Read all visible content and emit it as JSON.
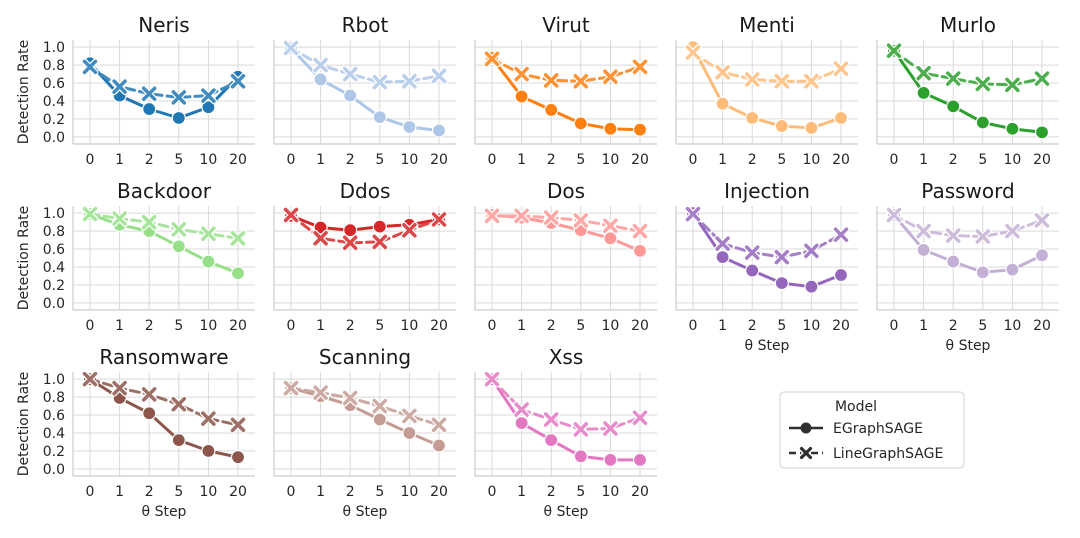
{
  "chart_data": {
    "type": "line",
    "layout": "small-multiples",
    "ylabel": "Detection Rate",
    "xlabel": "θ Step",
    "x_categories": [
      "0",
      "1",
      "2",
      "5",
      "10",
      "20"
    ],
    "ylim": [
      -0.08,
      1.08
    ],
    "yticks": [
      0.0,
      0.2,
      0.4,
      0.6,
      0.8,
      1.0
    ],
    "ytick_labels": [
      "0.0",
      "0.2",
      "0.4",
      "0.6",
      "0.8",
      "1.0"
    ],
    "grid": true,
    "legend": {
      "title": "Model",
      "position": "bottom-right",
      "entries": [
        {
          "name": "EGraphSAGE",
          "marker": "circle",
          "line": "solid"
        },
        {
          "name": "LineGraphSAGE",
          "marker": "x",
          "line": "dashed"
        }
      ]
    },
    "panels": [
      {
        "title": "Neris",
        "color": "#1f77b4",
        "series": [
          {
            "name": "EGraphSAGE",
            "values": [
              0.82,
              0.46,
              0.31,
              0.21,
              0.33,
              0.67
            ]
          },
          {
            "name": "LineGraphSAGE",
            "values": [
              0.78,
              0.56,
              0.48,
              0.44,
              0.46,
              0.62
            ]
          }
        ]
      },
      {
        "title": "Rbot",
        "color": "#aec7e8",
        "series": [
          {
            "name": "EGraphSAGE",
            "values": [
              0.99,
              0.64,
              0.46,
              0.22,
              0.11,
              0.07
            ]
          },
          {
            "name": "LineGraphSAGE",
            "values": [
              0.99,
              0.8,
              0.7,
              0.61,
              0.62,
              0.68
            ]
          }
        ]
      },
      {
        "title": "Virut",
        "color": "#ff7f0e",
        "series": [
          {
            "name": "EGraphSAGE",
            "values": [
              0.88,
              0.45,
              0.3,
              0.15,
              0.09,
              0.08
            ]
          },
          {
            "name": "LineGraphSAGE",
            "values": [
              0.87,
              0.7,
              0.63,
              0.62,
              0.67,
              0.78
            ]
          }
        ]
      },
      {
        "title": "Menti",
        "color": "#ffbb78",
        "series": [
          {
            "name": "EGraphSAGE",
            "values": [
              1.0,
              0.37,
              0.21,
              0.12,
              0.1,
              0.21
            ]
          },
          {
            "name": "LineGraphSAGE",
            "values": [
              0.94,
              0.72,
              0.64,
              0.62,
              0.62,
              0.76
            ]
          }
        ]
      },
      {
        "title": "Murlo",
        "color": "#2ca02c",
        "series": [
          {
            "name": "EGraphSAGE",
            "values": [
              0.96,
              0.49,
              0.34,
              0.16,
              0.09,
              0.05
            ]
          },
          {
            "name": "LineGraphSAGE",
            "values": [
              0.96,
              0.71,
              0.65,
              0.59,
              0.58,
              0.65
            ]
          }
        ]
      },
      {
        "title": "Backdoor",
        "color": "#98df8a",
        "series": [
          {
            "name": "EGraphSAGE",
            "values": [
              0.99,
              0.87,
              0.8,
              0.63,
              0.46,
              0.33
            ]
          },
          {
            "name": "LineGraphSAGE",
            "values": [
              0.99,
              0.94,
              0.9,
              0.82,
              0.77,
              0.72
            ]
          }
        ]
      },
      {
        "title": "Ddos",
        "color": "#d62728",
        "series": [
          {
            "name": "EGraphSAGE",
            "values": [
              0.97,
              0.84,
              0.81,
              0.85,
              0.87,
              0.93
            ]
          },
          {
            "name": "LineGraphSAGE",
            "values": [
              0.98,
              0.72,
              0.67,
              0.68,
              0.81,
              0.93
            ]
          }
        ]
      },
      {
        "title": "Dos",
        "color": "#ff9896",
        "series": [
          {
            "name": "EGraphSAGE",
            "values": [
              0.98,
              0.95,
              0.89,
              0.81,
              0.72,
              0.58
            ]
          },
          {
            "name": "LineGraphSAGE",
            "values": [
              0.97,
              0.97,
              0.95,
              0.92,
              0.86,
              0.8
            ]
          }
        ]
      },
      {
        "title": "Injection",
        "color": "#9467bd",
        "series": [
          {
            "name": "EGraphSAGE",
            "values": [
              1.0,
              0.51,
              0.36,
              0.22,
              0.18,
              0.31
            ]
          },
          {
            "name": "LineGraphSAGE",
            "values": [
              0.99,
              0.66,
              0.56,
              0.51,
              0.58,
              0.76
            ]
          }
        ]
      },
      {
        "title": "Password",
        "color": "#c5b0d5",
        "series": [
          {
            "name": "EGraphSAGE",
            "values": [
              0.98,
              0.59,
              0.46,
              0.34,
              0.37,
              0.53
            ]
          },
          {
            "name": "LineGraphSAGE",
            "values": [
              0.98,
              0.8,
              0.75,
              0.74,
              0.8,
              0.92
            ]
          }
        ]
      },
      {
        "title": "Ransomware",
        "color": "#8c564b",
        "series": [
          {
            "name": "EGraphSAGE",
            "values": [
              1.0,
              0.79,
              0.62,
              0.32,
              0.2,
              0.13
            ]
          },
          {
            "name": "LineGraphSAGE",
            "values": [
              1.0,
              0.9,
              0.83,
              0.72,
              0.56,
              0.49
            ]
          }
        ]
      },
      {
        "title": "Scanning",
        "color": "#c49c94",
        "series": [
          {
            "name": "EGraphSAGE",
            "values": [
              0.9,
              0.81,
              0.71,
              0.55,
              0.4,
              0.26
            ]
          },
          {
            "name": "LineGraphSAGE",
            "values": [
              0.9,
              0.85,
              0.79,
              0.7,
              0.59,
              0.49
            ]
          }
        ]
      },
      {
        "title": "Xss",
        "color": "#e377c2",
        "series": [
          {
            "name": "EGraphSAGE",
            "values": [
              1.0,
              0.51,
              0.32,
              0.14,
              0.1,
              0.1
            ]
          },
          {
            "name": "LineGraphSAGE",
            "values": [
              1.0,
              0.66,
              0.55,
              0.44,
              0.45,
              0.57
            ]
          }
        ]
      }
    ]
  }
}
